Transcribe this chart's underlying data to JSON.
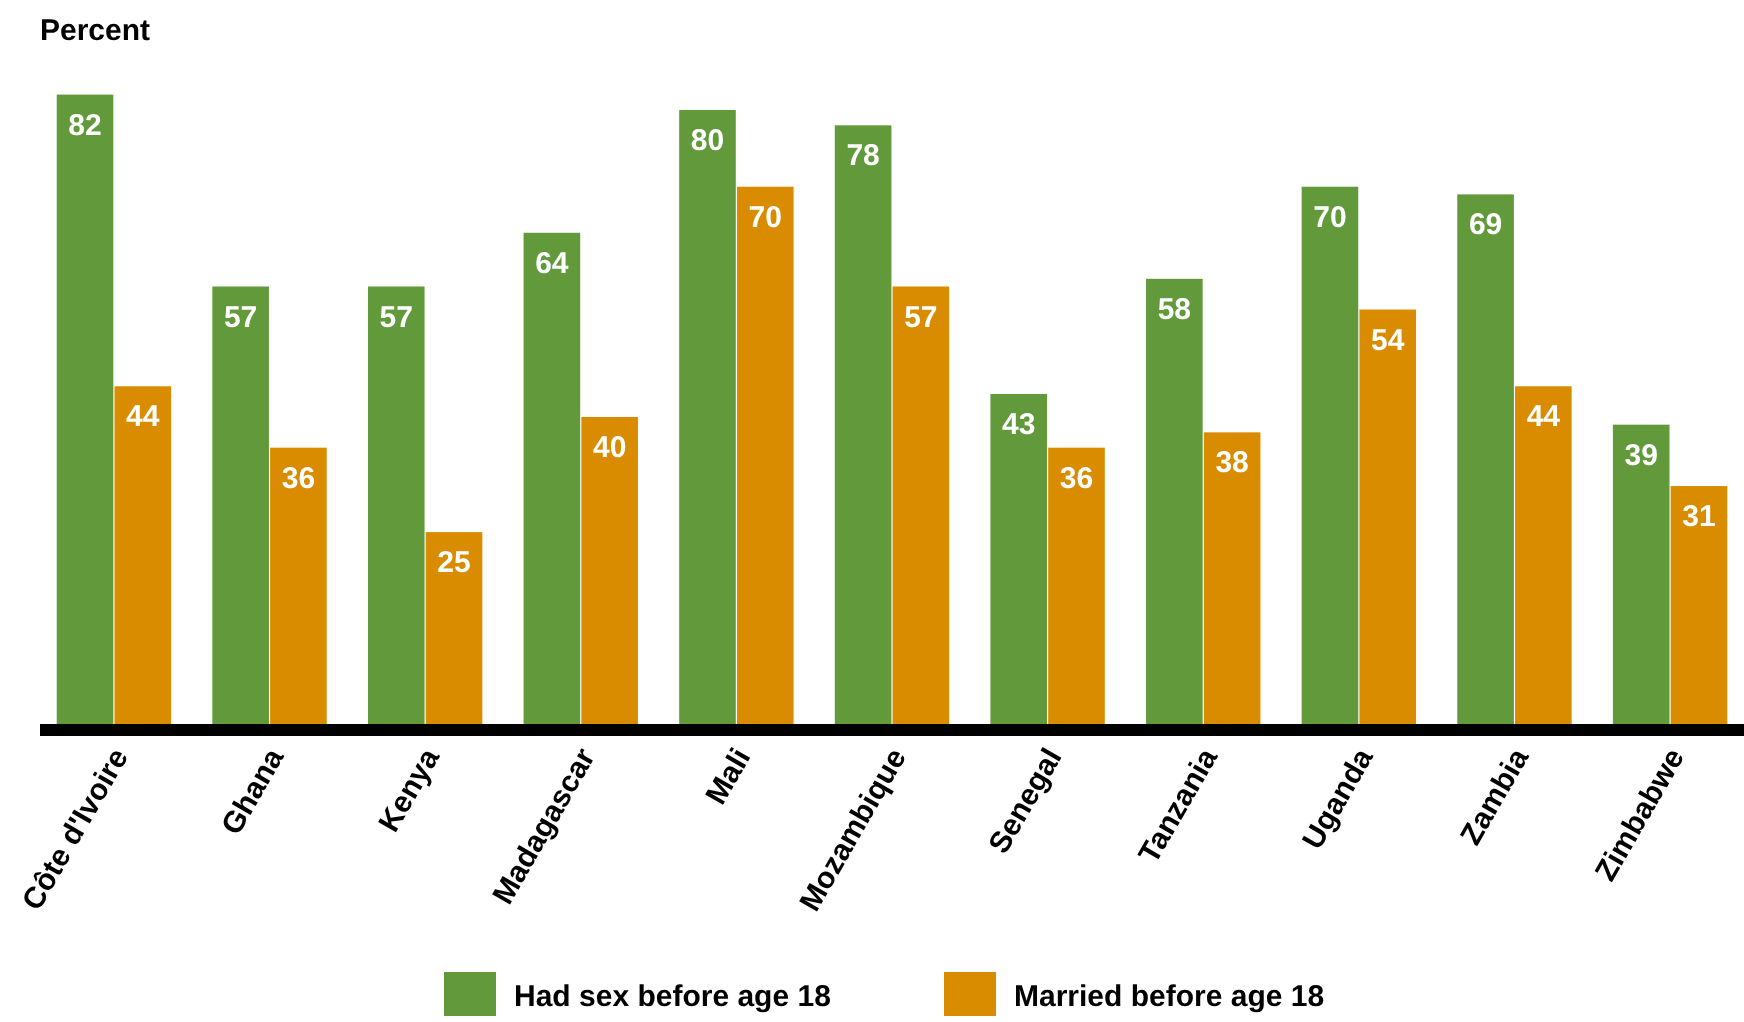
{
  "chart_data": {
    "type": "bar",
    "ylabel": "Percent",
    "categories": [
      "Côte d'Ivoire",
      "Ghana",
      "Kenya",
      "Madagascar",
      "Mali",
      "Mozambique",
      "Senegal",
      "Tanzania",
      "Uganda",
      "Zambia",
      "Zimbabwe"
    ],
    "series": [
      {
        "name": "Had sex before age 18",
        "color": "#629a3b",
        "values": [
          82,
          57,
          57,
          64,
          80,
          78,
          43,
          58,
          70,
          69,
          39
        ]
      },
      {
        "name": "Married before age 18",
        "color": "#d98c00",
        "values": [
          44,
          36,
          25,
          40,
          70,
          57,
          36,
          38,
          54,
          44,
          31
        ]
      }
    ],
    "data_labels": true,
    "legend": "bottom"
  }
}
